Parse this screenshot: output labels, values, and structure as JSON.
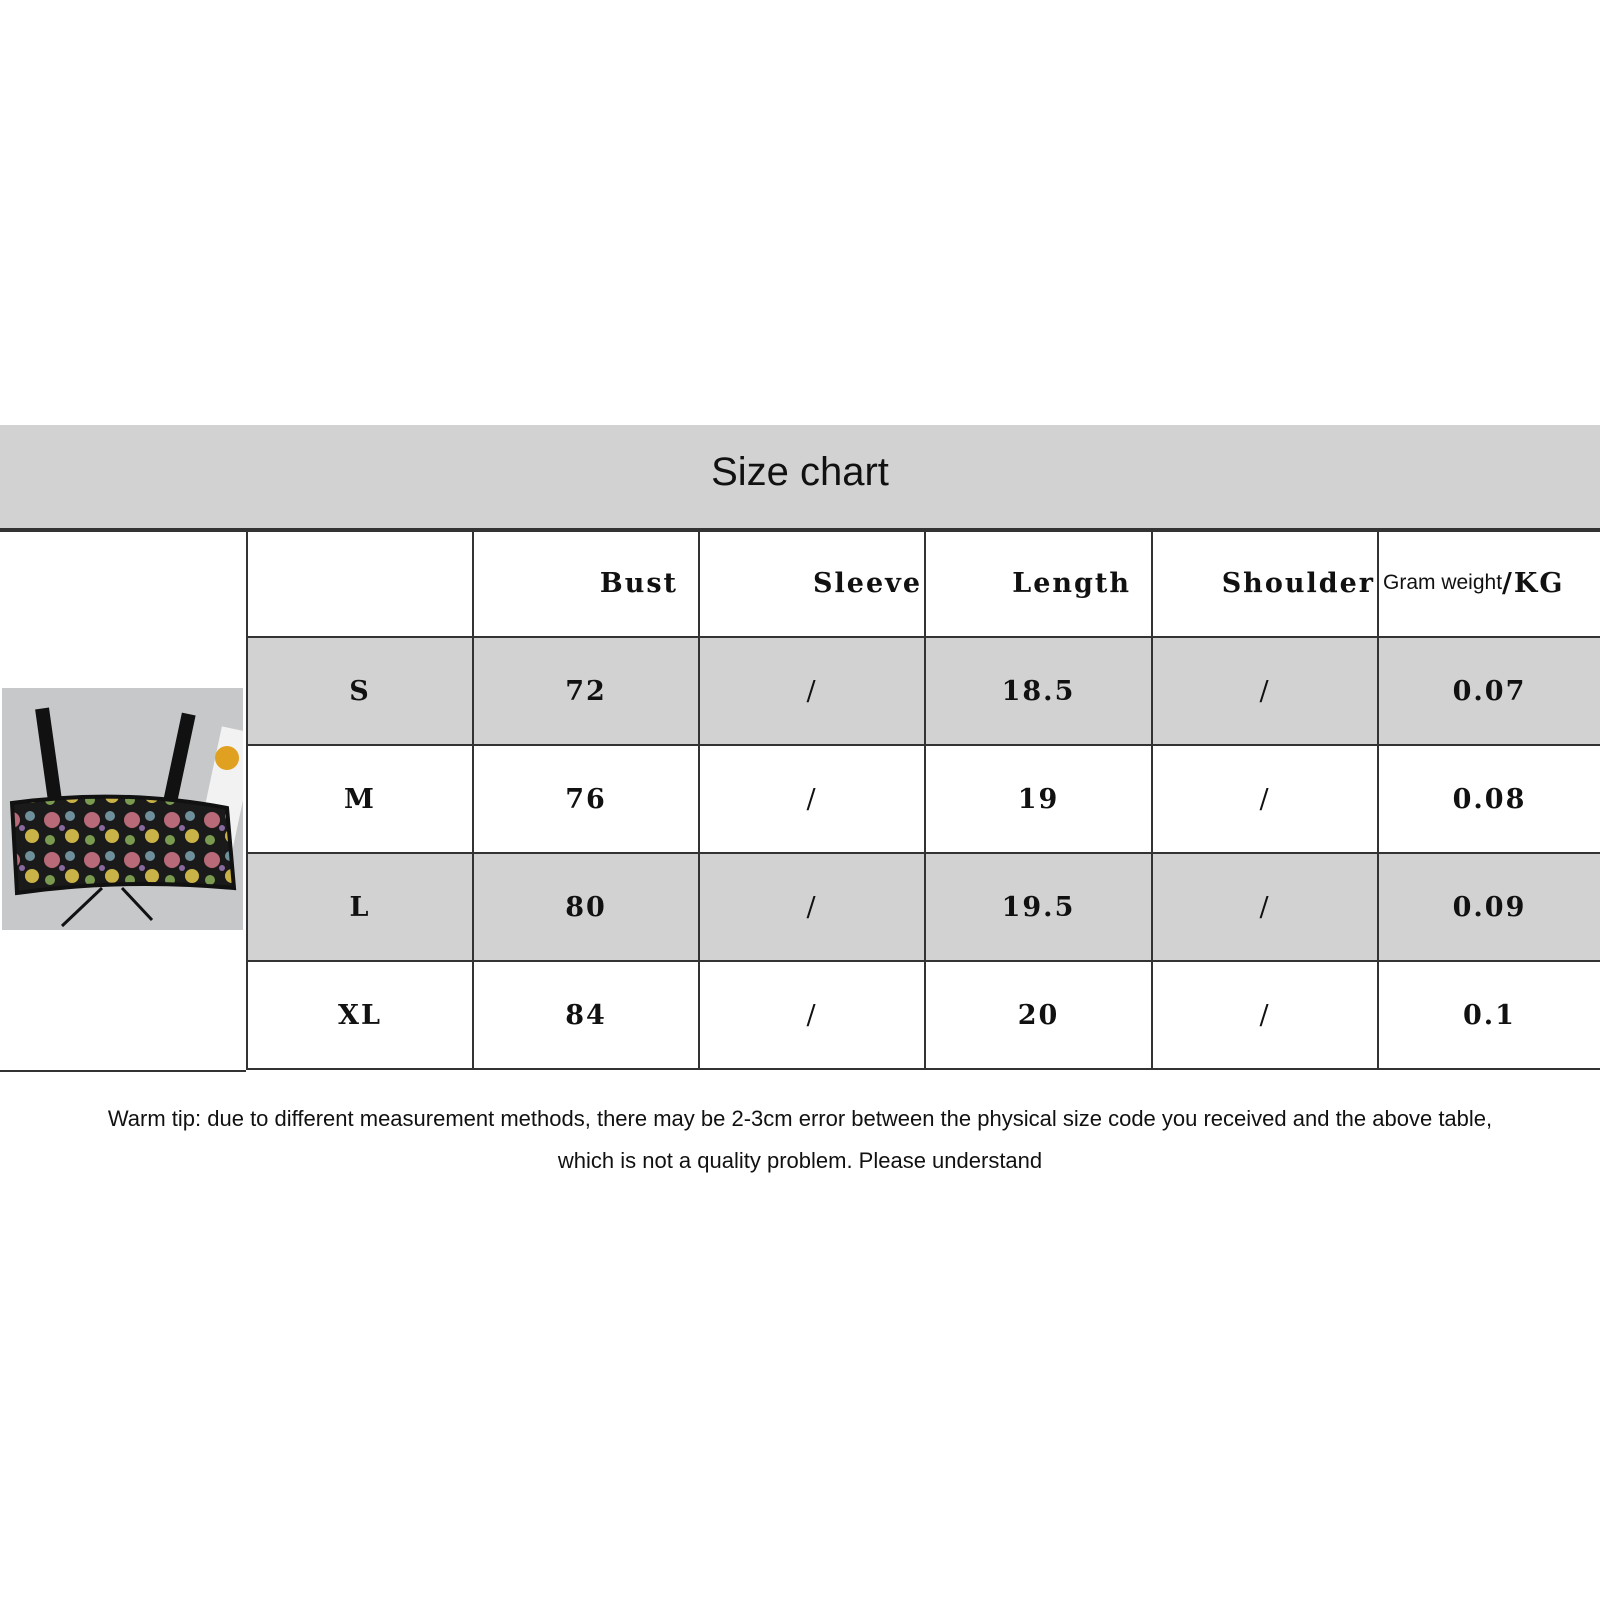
{
  "title": "Size chart",
  "table": {
    "headers": [
      "",
      "Bust",
      "Sleeve",
      "Length",
      "Shoulder",
      "Gram weight",
      "/KG"
    ],
    "rows": [
      [
        "S",
        "72",
        "/",
        "18.5",
        "/",
        "0.07"
      ],
      [
        "M",
        "76",
        "/",
        "19",
        "/",
        "0.08"
      ],
      [
        "L",
        "80",
        "/",
        "19.5",
        "/",
        "0.09"
      ],
      [
        "XL",
        "84",
        "/",
        "20",
        "/",
        "0.1"
      ]
    ]
  },
  "product_image": "floral-tapestry-crop-top-photo",
  "tip": {
    "line1": "Warm tip: due to different measurement methods, there may be 2-3cm error between the physical size code you received and the above table,",
    "line2": "which is not a quality problem. Please understand"
  },
  "colors": {
    "band": "#d3d2d3",
    "border": "#333333"
  }
}
